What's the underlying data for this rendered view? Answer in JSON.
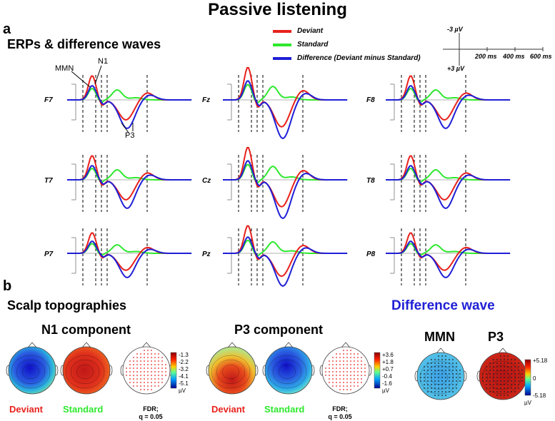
{
  "title": "Passive listening",
  "panel_a": {
    "letter": "a",
    "heading": "ERPs & difference waves",
    "legend": [
      {
        "label": "Deviant",
        "color": "#e8211c"
      },
      {
        "label": "Standard",
        "color": "#2ee82e"
      },
      {
        "label": "Difference (Deviant minus Standard)",
        "color": "#1f1fd6"
      }
    ],
    "scale": {
      "top": "-3 µV",
      "bottom": "+3 µV",
      "ticks": [
        "200 ms",
        "400 ms",
        "600 ms"
      ]
    },
    "annotations": {
      "mmn": "MMN",
      "n1": "N1",
      "p3": "P3"
    },
    "electrodes": [
      "F7",
      "Fz",
      "F8",
      "T7",
      "Cz",
      "T8",
      "P7",
      "Pz",
      "P8"
    ]
  },
  "panel_b": {
    "letter": "b",
    "heading": "Scalp topographies",
    "n1": {
      "title": "N1 component",
      "conditions": [
        "Deviant",
        "Standard"
      ],
      "fdr": [
        "FDR;",
        "q = 0.05"
      ],
      "colorbar": [
        "-1.3",
        "-2.2",
        "-3.2",
        "-4.1",
        "-5.1"
      ],
      "unit": "µV"
    },
    "p3": {
      "title": "P3 component",
      "conditions": [
        "Deviant",
        "Standard"
      ],
      "fdr": [
        "FDR;",
        "q = 0.05"
      ],
      "colorbar": [
        "+3.6",
        "+1.8",
        "+0.7",
        "-0.4",
        "-1.6"
      ],
      "unit": "µV"
    },
    "difference": {
      "title": "Difference wave",
      "components": [
        "MMN",
        "P3"
      ],
      "colorbar": [
        "+5.18",
        "0",
        "-5.18"
      ],
      "unit": "µV"
    }
  },
  "colors": {
    "deviant": "#e8211c",
    "standard": "#2ee82e",
    "difference": "#1f1fd6"
  }
}
